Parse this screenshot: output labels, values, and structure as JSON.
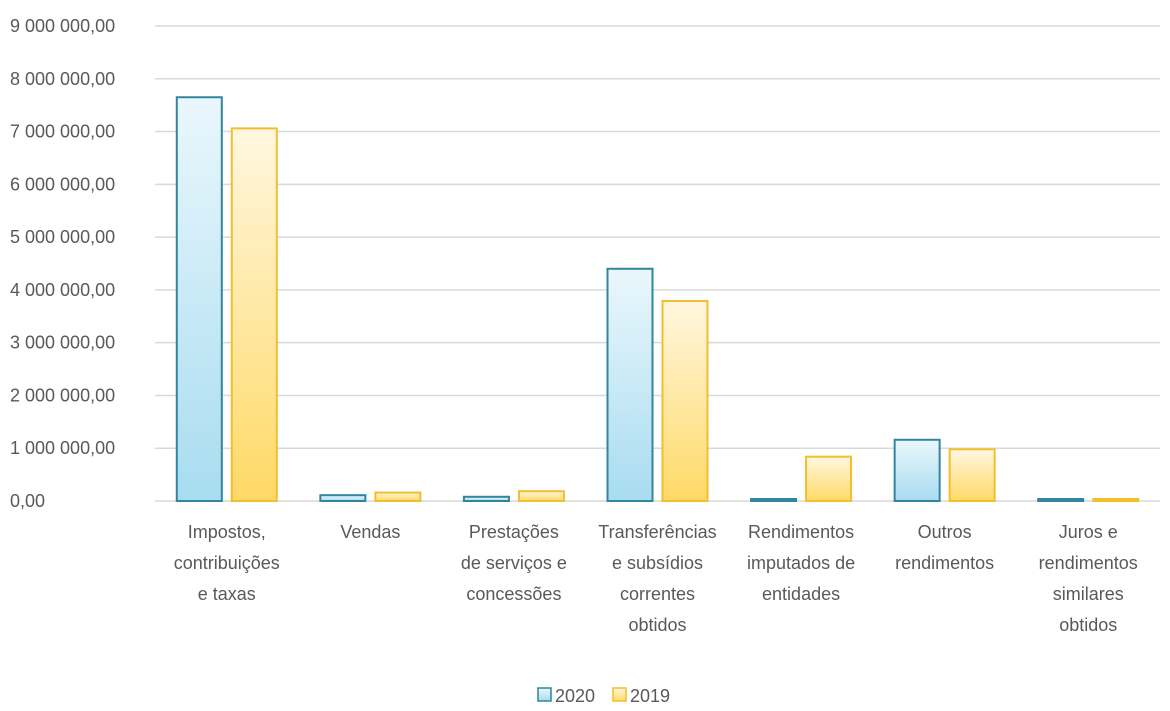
{
  "chart_data": {
    "type": "bar",
    "categories": [
      [
        "Impostos,",
        "contribuições",
        "e taxas"
      ],
      [
        "Vendas"
      ],
      [
        "Prestações",
        "de serviços e",
        "concessões"
      ],
      [
        "Transferências",
        "e subsídios",
        "correntes",
        "obtidos"
      ],
      [
        "Rendimentos",
        "imputados de",
        "entidades"
      ],
      [
        "Outros",
        "rendimentos"
      ],
      [
        "Juros e",
        "rendimentos",
        "similares",
        "obtidos"
      ]
    ],
    "series": [
      {
        "name": "2020",
        "values": [
          7650000,
          110000,
          80000,
          4400000,
          20000,
          1160000,
          10000
        ]
      },
      {
        "name": "2019",
        "values": [
          7060000,
          160000,
          185000,
          3790000,
          840000,
          980000,
          10000
        ]
      }
    ],
    "ylim": [
      0,
      9000000
    ],
    "yticks": [
      {
        "value": 0,
        "label": "0,00"
      },
      {
        "value": 1000000,
        "label": "1 000 000,00"
      },
      {
        "value": 2000000,
        "label": "2 000 000,00"
      },
      {
        "value": 3000000,
        "label": "3 000 000,00"
      },
      {
        "value": 4000000,
        "label": "4 000 000,00"
      },
      {
        "value": 5000000,
        "label": "5 000 000,00"
      },
      {
        "value": 6000000,
        "label": "6 000 000,00"
      },
      {
        "value": 7000000,
        "label": "7 000 000,00"
      },
      {
        "value": 8000000,
        "label": "8 000 000,00"
      },
      {
        "value": 9000000,
        "label": "9 000 000,00"
      }
    ],
    "grid": true,
    "legend_position": "bottom-center",
    "colors": {
      "2020_stroke": "#31859C",
      "2020_fill_top": "#EAF7FC",
      "2020_fill_bottom": "#A8DCF0",
      "2019_stroke": "#F2BE2C",
      "2019_fill_top": "#FFF7E0",
      "2019_fill_bottom": "#FFD966",
      "grid": "#D9D9D9",
      "text": "#595959"
    }
  }
}
